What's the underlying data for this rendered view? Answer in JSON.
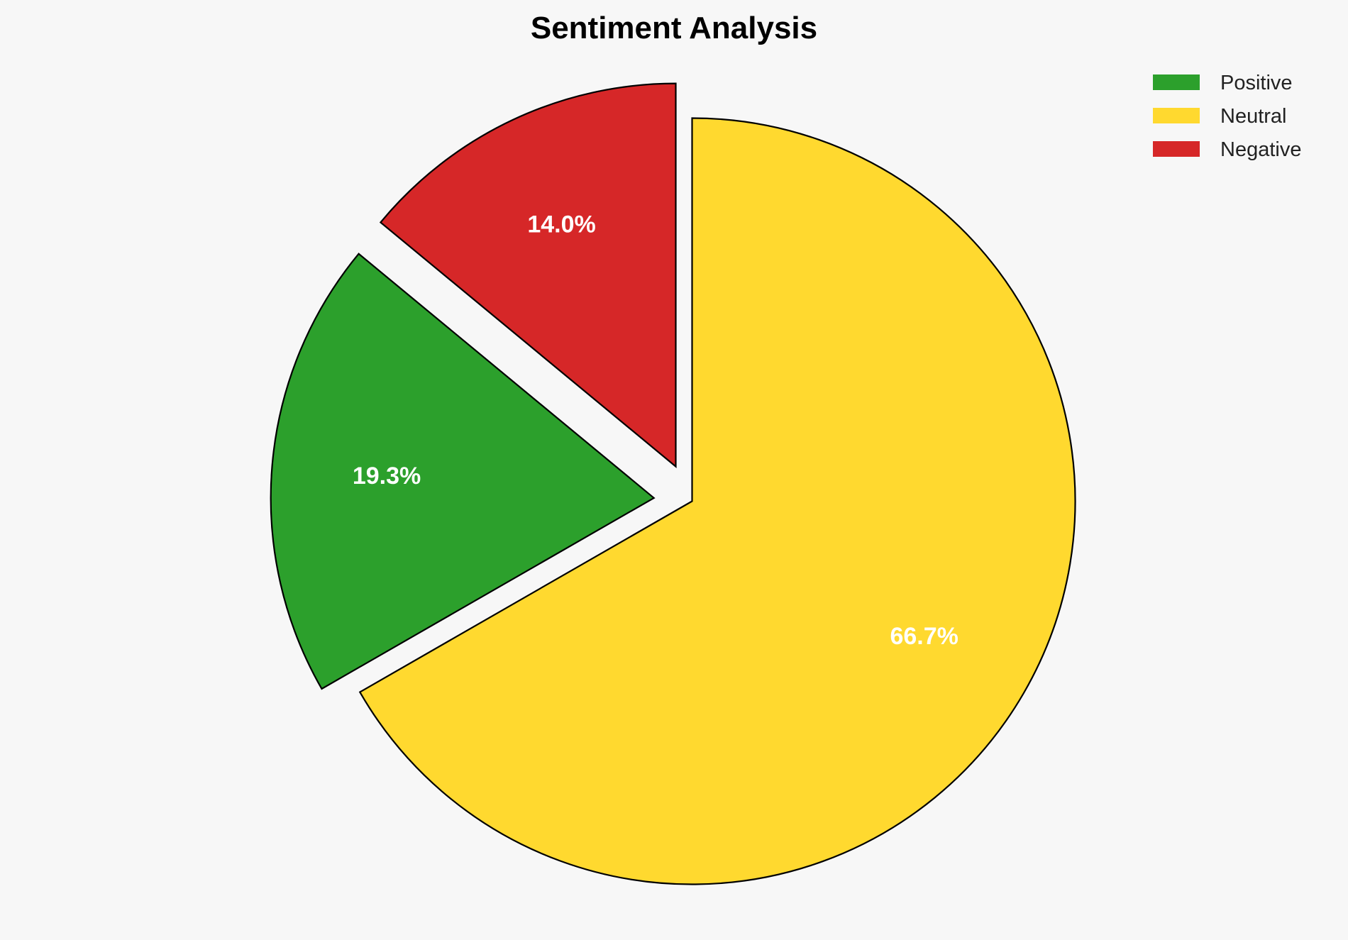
{
  "chart_data": {
    "type": "pie",
    "title": "Sentiment Analysis",
    "categories": [
      "Positive",
      "Neutral",
      "Negative"
    ],
    "values": [
      19.3,
      66.7,
      14.0
    ],
    "labels": [
      "19.3%",
      "66.7%",
      "14.0%"
    ],
    "colors": [
      "#2ca02c",
      "#ffd92f",
      "#d62728"
    ],
    "exploded": [
      true,
      false,
      true
    ],
    "start_angle_deg": 90,
    "legend_position": "top-right"
  }
}
